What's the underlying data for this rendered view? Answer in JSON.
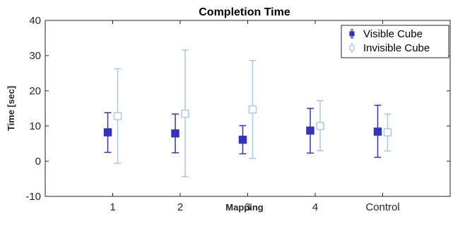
{
  "chart_data": {
    "type": "scatter",
    "title": "Completion Time",
    "xlabel": "Mapping",
    "ylabel": "Time [sec]",
    "categories": [
      "1",
      "2",
      "3",
      "4",
      "Control"
    ],
    "ylim": [
      -10,
      40
    ],
    "yticks": [
      -10,
      0,
      10,
      20,
      30,
      40
    ],
    "grid": false,
    "legend_position": "top-right",
    "series": [
      {
        "name": "Visible Cube",
        "color": "#3333bb",
        "marker": "filled-square",
        "mean": [
          8.2,
          7.9,
          6.1,
          8.7,
          8.4
        ],
        "lower": [
          2.5,
          2.4,
          2.1,
          2.3,
          1.1
        ],
        "upper": [
          13.8,
          13.4,
          10.1,
          15.0,
          15.9
        ]
      },
      {
        "name": "Invisible Cube",
        "color": "#a9c9e6",
        "marker": "open-square",
        "mean": [
          12.8,
          13.5,
          14.7,
          10.0,
          8.2
        ],
        "lower": [
          -0.6,
          -4.4,
          0.8,
          3.0,
          2.9
        ],
        "upper": [
          26.3,
          31.6,
          28.6,
          17.2,
          13.4
        ]
      }
    ]
  }
}
